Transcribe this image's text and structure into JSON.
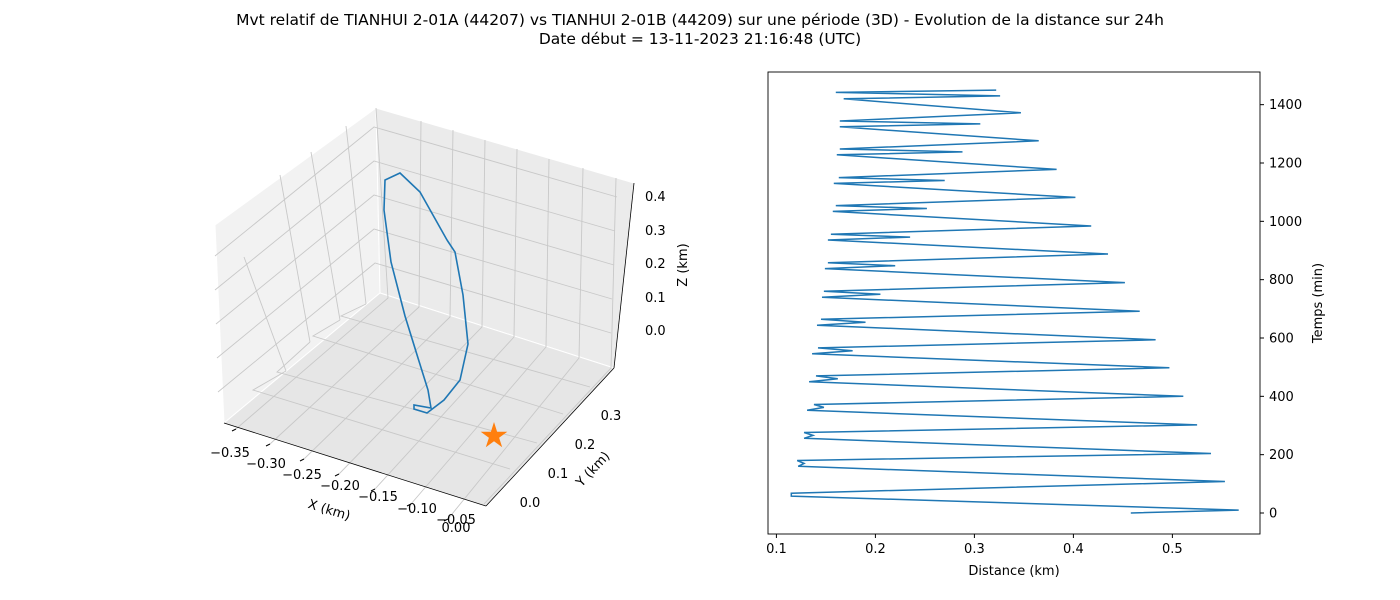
{
  "figure": {
    "title": "Mvt relatif de TIANHUI 2-01A (44207) vs TIANHUI 2-01B (44209) sur une période (3D) - Evolution de la distance sur 24h",
    "subtitle": "Date début = 13-11-2023 21:16:48 (UTC)"
  },
  "chart_data": [
    {
      "type": "line",
      "projection": "3d",
      "xlabel": "X (km)",
      "ylabel": "Y (km)",
      "zlabel": "Z (km)",
      "xticks": [
        "−0.35",
        "−0.30",
        "−0.25",
        "−0.20",
        "−0.15",
        "−0.10",
        "−0.05",
        "0.00"
      ],
      "yticks": [
        "0.0",
        "0.1",
        "0.2",
        "0.3"
      ],
      "zticks": [
        "0.0",
        "0.1",
        "0.2",
        "0.3",
        "0.4"
      ],
      "xlim": [
        -0.36,
        0.01
      ],
      "ylim": [
        -0.05,
        0.36
      ],
      "zlim": [
        -0.05,
        0.45
      ],
      "grid": true,
      "series_color": "#1f77b4",
      "marker": {
        "symbol": "star",
        "color": "#ff7f0e",
        "x": 0.0,
        "y": 0.0,
        "z": 0.0
      },
      "trajectory": [
        {
          "x": -0.13,
          "y": 0.2,
          "z": 0.28
        },
        {
          "x": -0.17,
          "y": 0.22,
          "z": 0.36
        },
        {
          "x": -0.21,
          "y": 0.25,
          "z": 0.43
        },
        {
          "x": -0.225,
          "y": 0.26,
          "z": 0.445
        },
        {
          "x": -0.235,
          "y": 0.27,
          "z": 0.43
        },
        {
          "x": -0.235,
          "y": 0.275,
          "z": 0.39
        },
        {
          "x": -0.24,
          "y": 0.27,
          "z": 0.32
        },
        {
          "x": -0.245,
          "y": 0.25,
          "z": 0.22
        },
        {
          "x": -0.25,
          "y": 0.22,
          "z": 0.12
        },
        {
          "x": -0.255,
          "y": 0.19,
          "z": 0.04
        },
        {
          "x": -0.26,
          "y": 0.16,
          "z": -0.02
        },
        {
          "x": -0.26,
          "y": 0.15,
          "z": -0.03
        },
        {
          "x": -0.28,
          "y": 0.155,
          "z": -0.025
        },
        {
          "x": -0.275,
          "y": 0.13,
          "z": -0.045
        },
        {
          "x": -0.255,
          "y": 0.11,
          "z": -0.04
        },
        {
          "x": -0.235,
          "y": 0.1,
          "z": -0.02
        },
        {
          "x": -0.21,
          "y": 0.09,
          "z": 0.02
        },
        {
          "x": -0.185,
          "y": 0.09,
          "z": 0.1
        },
        {
          "x": -0.16,
          "y": 0.12,
          "z": 0.18
        },
        {
          "x": -0.14,
          "y": 0.16,
          "z": 0.24
        },
        {
          "x": -0.13,
          "y": 0.2,
          "z": 0.28
        }
      ]
    },
    {
      "type": "line",
      "xlabel": "Distance (km)",
      "ylabel": "Temps (min)",
      "xlim": [
        0.0915,
        0.5885
      ],
      "ylim": [
        -72,
        1512
      ],
      "xticks": [
        0.1,
        0.2,
        0.3,
        0.4,
        0.5
      ],
      "yticks": [
        0,
        200,
        400,
        600,
        800,
        1000,
        1200,
        1400
      ],
      "xtick_labels": [
        "0.1",
        "0.2",
        "0.3",
        "0.4",
        "0.5"
      ],
      "ytick_labels": [
        "0",
        "200",
        "400",
        "600",
        "800",
        "1000",
        "1200",
        "1400"
      ],
      "series_color": "#1f77b4",
      "series": [
        {
          "x": [
            0.458,
            0.567,
            0.115,
            0.115,
            0.553,
            0.122,
            0.128,
            0.121,
            0.539,
            0.128,
            0.137,
            0.128,
            0.525,
            0.131,
            0.148,
            0.138,
            0.511,
            0.133,
            0.162,
            0.14,
            0.497,
            0.136,
            0.177,
            0.142,
            0.483,
            0.141,
            0.19,
            0.145,
            0.467,
            0.146,
            0.205,
            0.148,
            0.452,
            0.149,
            0.22,
            0.152,
            0.435,
            0.152,
            0.235,
            0.155,
            0.418,
            0.157,
            0.252,
            0.16,
            0.402,
            0.158,
            0.27,
            0.163,
            0.383,
            0.161,
            0.288,
            0.164,
            0.365,
            0.164,
            0.306,
            0.164,
            0.347,
            0.168,
            0.326,
            0.16,
            0.322
          ],
          "y": [
            0,
            10,
            58,
            68,
            108,
            160,
            170,
            180,
            204,
            256,
            266,
            276,
            302,
            352,
            362,
            372,
            400,
            450,
            460,
            470,
            498,
            546,
            556,
            566,
            594,
            644,
            654,
            664,
            692,
            740,
            750,
            760,
            790,
            838,
            848,
            858,
            888,
            936,
            946,
            956,
            984,
            1034,
            1044,
            1054,
            1082,
            1130,
            1140,
            1150,
            1178,
            1228,
            1238,
            1248,
            1276,
            1324,
            1334,
            1344,
            1372,
            1420,
            1430,
            1442,
            1450
          ]
        }
      ]
    }
  ]
}
